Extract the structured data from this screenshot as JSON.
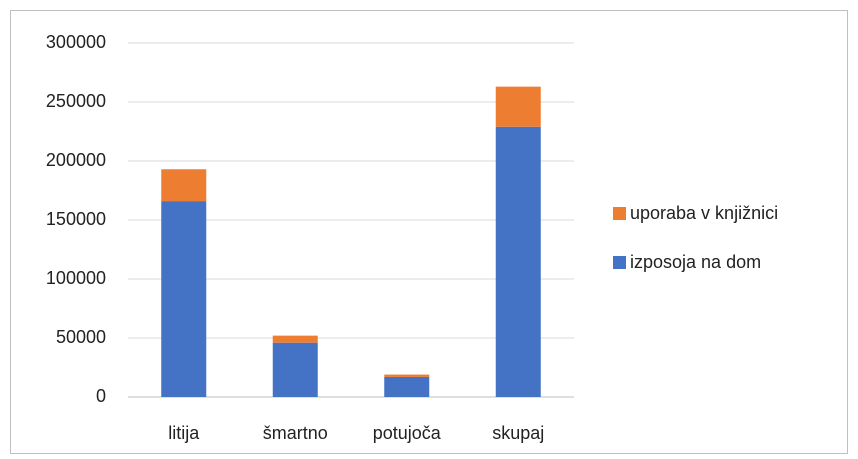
{
  "chart_data": {
    "type": "stacked_bar",
    "categories": [
      "litija",
      "šmartno",
      "potujoča",
      "skupaj"
    ],
    "series": [
      {
        "name": "izposoja na dom",
        "color": "#4472c4",
        "values": [
          166000,
          46000,
          17000,
          229000
        ]
      },
      {
        "name": "uporaba v knjižnici",
        "color": "#ed7d31",
        "values": [
          27000,
          6000,
          2000,
          34000
        ]
      }
    ],
    "ylim": [
      0,
      300000
    ],
    "yticks": [
      0,
      50000,
      100000,
      150000,
      200000,
      250000,
      300000
    ],
    "grid": true,
    "legend": "right"
  }
}
